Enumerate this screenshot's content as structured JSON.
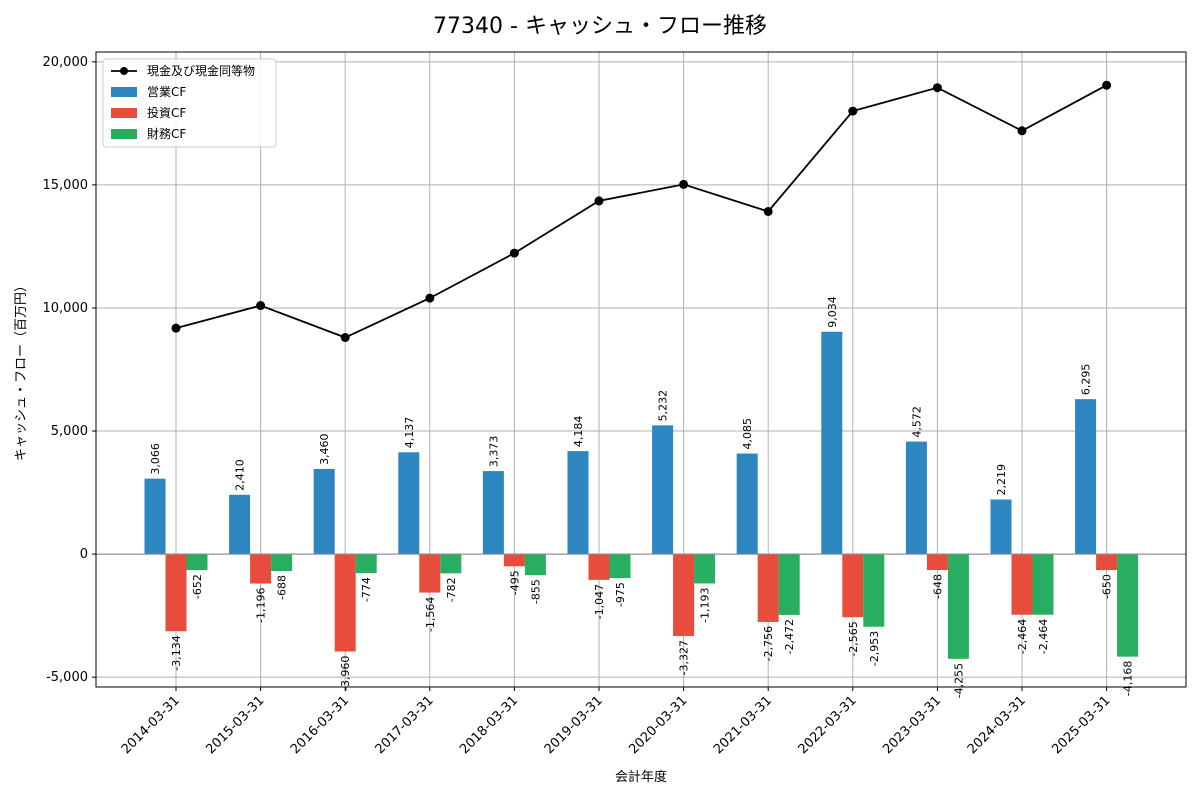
{
  "chart_data": {
    "type": "bar",
    "title": "77340 - キャッシュ・フロー推移",
    "xlabel": "会計年度",
    "ylabel": "キャッシュ・フロー（百万円）",
    "ylim": [
      -5400,
      20400
    ],
    "yticks": [
      -5000,
      0,
      5000,
      10000,
      15000,
      20000
    ],
    "ytick_labels": [
      "-5,000",
      "0",
      "5,000",
      "10,000",
      "15,000",
      "20,000"
    ],
    "grid": true,
    "legend_position": "top-left",
    "categories": [
      "2014-03-31",
      "2015-03-31",
      "2016-03-31",
      "2017-03-31",
      "2018-03-31",
      "2019-03-31",
      "2020-03-31",
      "2021-03-31",
      "2022-03-31",
      "2023-03-31",
      "2024-03-31",
      "2025-03-31"
    ],
    "series": [
      {
        "name": "営業CF",
        "kind": "bar",
        "color": "#2e86c1",
        "values": [
          3066,
          2410,
          3460,
          4137,
          3373,
          4184,
          5232,
          4085,
          9034,
          4572,
          2219,
          6295
        ],
        "labels": [
          "3,066",
          "2,410",
          "3,460",
          "4,137",
          "3,373",
          "4,184",
          "5,232",
          "4,085",
          "9,034",
          "4,572",
          "2,219",
          "6,295"
        ]
      },
      {
        "name": "投資CF",
        "kind": "bar",
        "color": "#e74c3c",
        "values": [
          -3134,
          -1196,
          -3960,
          -1564,
          -495,
          -1047,
          -3327,
          -2756,
          -2565,
          -648,
          -2464,
          -650
        ],
        "labels": [
          "-3,134",
          "-1,196",
          "-3,960",
          "-1,564",
          "-495",
          "-1,047",
          "-3,327",
          "-2,756",
          "-2,565",
          "-648",
          "-2,464",
          "-650"
        ]
      },
      {
        "name": "財務CF",
        "kind": "bar",
        "color": "#27ae60",
        "values": [
          -652,
          -688,
          -774,
          -782,
          -855,
          -975,
          -1193,
          -2472,
          -2953,
          -4255,
          -2464,
          -4168
        ],
        "labels": [
          "-652",
          "-688",
          "-774",
          "-782",
          "-855",
          "-975",
          "-1,193",
          "-2,472",
          "-2,953",
          "-4,255",
          "-2,464",
          "-4,168"
        ]
      },
      {
        "name": "現金及び現金同等物",
        "kind": "line",
        "color": "#000000",
        "values": [
          9180,
          10100,
          8800,
          10400,
          12230,
          14350,
          15020,
          13920,
          18000,
          18950,
          17200,
          19050
        ]
      }
    ]
  }
}
